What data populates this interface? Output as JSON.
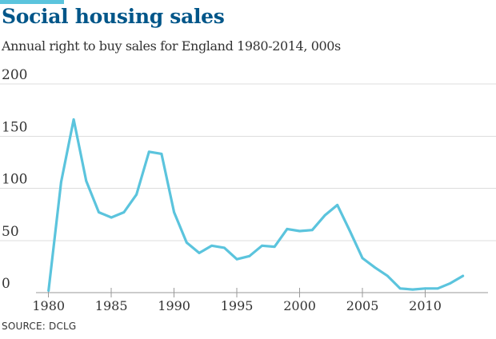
{
  "header": {
    "title": "Social housing sales",
    "subtitle": "Annual right to buy sales for England 1980-2014, 000s"
  },
  "footer": {
    "source": "SOURCE: DCLG"
  },
  "colors": {
    "line": "#5bc4dd",
    "title": "#005689",
    "grid": "#dddddd",
    "axis": "#999999"
  },
  "chart_data": {
    "type": "line",
    "title": "Social housing sales",
    "subtitle": "Annual right to buy sales for England 1980-2014, 000s",
    "xlabel": "",
    "ylabel": "",
    "xlim": [
      1979,
      2015
    ],
    "ylim": [
      0,
      200
    ],
    "x_ticks": [
      1980,
      1985,
      1990,
      1995,
      2000,
      2005,
      2010
    ],
    "y_ticks": [
      0,
      50,
      100,
      150,
      200
    ],
    "grid": "horizontal",
    "legend": "none",
    "series": [
      {
        "x": [
          1980,
          1981,
          1982,
          1983,
          1984,
          1985,
          1986,
          1987,
          1988,
          1989,
          1990,
          1991,
          1992,
          1993,
          1994,
          1995,
          1996,
          1997,
          1998,
          1999,
          2000,
          2001,
          2002,
          2003,
          2004,
          2005,
          2006,
          2007,
          2008,
          2009,
          2010,
          2011,
          2012,
          2013
        ],
        "values": [
          2,
          106,
          166,
          107,
          77,
          72,
          77,
          94,
          135,
          133,
          77,
          48,
          38,
          45,
          43,
          32,
          35,
          45,
          44,
          61,
          59,
          60,
          74,
          84,
          59,
          33,
          24,
          16,
          4,
          3,
          4,
          4,
          9,
          16
        ]
      }
    ]
  }
}
